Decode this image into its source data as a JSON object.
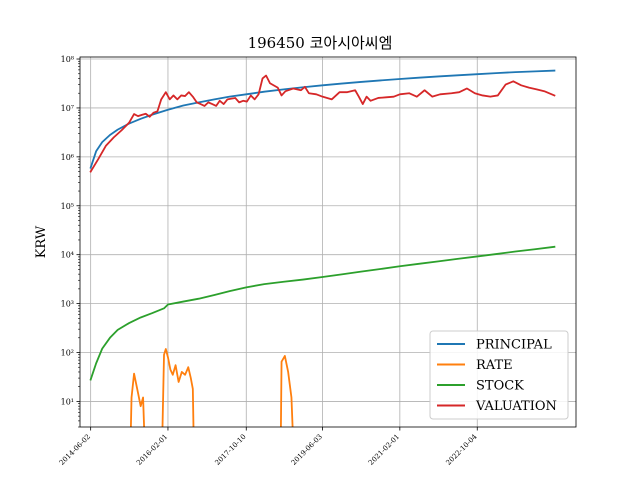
{
  "chart_data": {
    "type": "line",
    "title": "196450 코아시아씨엠",
    "xlabel": "",
    "ylabel": "KRW",
    "yscale": "log",
    "ylim": [
      3,
      110000000
    ],
    "xlim": [
      "2014-03-10",
      "2024-11-20"
    ],
    "grid": true,
    "legend_position": "lower-right",
    "x_ticks": [
      "2014-06-02",
      "2016-02-01",
      "2017-10-10",
      "2019-06-03",
      "2021-02-01",
      "2022-10-04"
    ],
    "y_ticks": [
      {
        "value": 10,
        "label": "10¹"
      },
      {
        "value": 100,
        "label": "10²"
      },
      {
        "value": 1000,
        "label": "10³"
      },
      {
        "value": 10000,
        "label": "10⁴"
      },
      {
        "value": 100000,
        "label": "10⁵"
      },
      {
        "value": 1000000,
        "label": "10⁶"
      },
      {
        "value": 10000000,
        "label": "10⁷"
      },
      {
        "value": 100000000,
        "label": "10⁸"
      }
    ],
    "series": [
      {
        "name": "PRINCIPAL",
        "color": "#1f77b4",
        "segments": [
          [
            [
              "2014-06-02",
              600000
            ],
            [
              "2014-07-15",
              1300000
            ],
            [
              "2014-09-01",
              2000000
            ],
            [
              "2014-11-01",
              2800000
            ],
            [
              "2015-01-01",
              3600000
            ],
            [
              "2015-04-01",
              4800000
            ],
            [
              "2015-07-01",
              6000000
            ],
            [
              "2015-10-01",
              7300000
            ],
            [
              "2016-02-01",
              9200000
            ],
            [
              "2016-06-01",
              11200000
            ],
            [
              "2016-10-01",
              13000000
            ],
            [
              "2017-02-01",
              15000000
            ],
            [
              "2017-06-01",
              17000000
            ],
            [
              "2017-10-10",
              19000000
            ],
            [
              "2018-03-01",
              21500000
            ],
            [
              "2018-08-01",
              24000000
            ],
            [
              "2019-01-01",
              26500000
            ],
            [
              "2019-06-03",
              29000000
            ],
            [
              "2019-11-01",
              31500000
            ],
            [
              "2020-04-01",
              34000000
            ],
            [
              "2020-09-01",
              36500000
            ],
            [
              "2021-02-01",
              39000000
            ],
            [
              "2021-07-01",
              41500000
            ],
            [
              "2021-12-01",
              44000000
            ],
            [
              "2022-05-01",
              46500000
            ],
            [
              "2022-10-04",
              49000000
            ],
            [
              "2023-03-01",
              51500000
            ],
            [
              "2023-08-01",
              54000000
            ],
            [
              "2024-01-01",
              56000000
            ],
            [
              "2024-06-03",
              58000000
            ]
          ]
        ]
      },
      {
        "name": "RATE",
        "color": "#ff7f0e",
        "segments": [
          [
            [
              "2015-04-15",
              3
            ],
            [
              "2015-04-20",
              12
            ],
            [
              "2015-05-10",
              37
            ],
            [
              "2015-06-10",
              15
            ],
            [
              "2015-07-01",
              8
            ],
            [
              "2015-07-20",
              12
            ],
            [
              "2015-07-28",
              3
            ]
          ],
          [
            [
              "2015-12-20",
              3
            ],
            [
              "2016-01-01",
              90
            ],
            [
              "2016-01-15",
              118
            ],
            [
              "2016-02-01",
              80
            ],
            [
              "2016-02-20",
              45
            ],
            [
              "2016-03-10",
              35
            ],
            [
              "2016-04-01",
              55
            ],
            [
              "2016-04-25",
              25
            ],
            [
              "2016-05-20",
              40
            ],
            [
              "2016-06-15",
              35
            ],
            [
              "2016-07-10",
              50
            ],
            [
              "2016-07-30",
              30
            ],
            [
              "2016-08-15",
              18
            ],
            [
              "2016-08-20",
              3
            ]
          ],
          [
            [
              "2018-07-10",
              3
            ],
            [
              "2018-07-15",
              65
            ],
            [
              "2018-08-10",
              85
            ],
            [
              "2018-09-05",
              40
            ],
            [
              "2018-10-01",
              12
            ],
            [
              "2018-10-10",
              3
            ]
          ]
        ]
      },
      {
        "name": "STOCK",
        "color": "#2ca02c",
        "segments": [
          [
            [
              "2014-06-02",
              28
            ],
            [
              "2014-07-15",
              60
            ],
            [
              "2014-09-01",
              120
            ],
            [
              "2014-11-01",
              200
            ],
            [
              "2015-01-01",
              290
            ],
            [
              "2015-04-01",
              400
            ],
            [
              "2015-07-01",
              520
            ],
            [
              "2015-10-01",
              640
            ],
            [
              "2016-01-01",
              800
            ],
            [
              "2016-02-01",
              960
            ],
            [
              "2016-06-01",
              1100
            ],
            [
              "2016-10-01",
              1260
            ],
            [
              "2017-02-01",
              1500
            ],
            [
              "2017-06-01",
              1800
            ],
            [
              "2017-10-10",
              2150
            ],
            [
              "2018-03-01",
              2500
            ],
            [
              "2018-08-01",
              2800
            ],
            [
              "2019-01-01",
              3100
            ],
            [
              "2019-06-03",
              3500
            ],
            [
              "2019-11-01",
              3950
            ],
            [
              "2020-04-01",
              4500
            ],
            [
              "2020-09-01",
              5100
            ],
            [
              "2021-02-01",
              5800
            ],
            [
              "2021-07-01",
              6500
            ],
            [
              "2021-12-01",
              7300
            ],
            [
              "2022-05-01",
              8200
            ],
            [
              "2022-10-04",
              9200
            ],
            [
              "2023-03-01",
              10300
            ],
            [
              "2023-08-01",
              11600
            ],
            [
              "2024-01-01",
              12900
            ],
            [
              "2024-06-03",
              14500
            ]
          ]
        ]
      },
      {
        "name": "VALUATION",
        "color": "#d62728",
        "segments": [
          [
            [
              "2014-06-02",
              500000
            ],
            [
              "2014-08-01",
              900000
            ],
            [
              "2014-10-01",
              1700000
            ],
            [
              "2014-12-01",
              2500000
            ],
            [
              "2015-02-01",
              3500000
            ],
            [
              "2015-04-01",
              5000000
            ],
            [
              "2015-05-10",
              7500000
            ],
            [
              "2015-06-10",
              6800000
            ],
            [
              "2015-07-10",
              7200000
            ],
            [
              "2015-08-10",
              7600000
            ],
            [
              "2015-09-10",
              6600000
            ],
            [
              "2015-10-10",
              8000000
            ],
            [
              "2015-11-10",
              8500000
            ],
            [
              "2015-12-10",
              15000000
            ],
            [
              "2016-01-15",
              21000000
            ],
            [
              "2016-02-15",
              15000000
            ],
            [
              "2016-03-15",
              18000000
            ],
            [
              "2016-04-15",
              15000000
            ],
            [
              "2016-05-15",
              18000000
            ],
            [
              "2016-06-15",
              17500000
            ],
            [
              "2016-07-15",
              21000000
            ],
            [
              "2016-08-15",
              17000000
            ],
            [
              "2016-09-15",
              13000000
            ],
            [
              "2016-10-15",
              12000000
            ],
            [
              "2016-11-15",
              11000000
            ],
            [
              "2016-12-15",
              13000000
            ],
            [
              "2017-01-15",
              12000000
            ],
            [
              "2017-02-15",
              11000000
            ],
            [
              "2017-03-15",
              14000000
            ],
            [
              "2017-04-15",
              12000000
            ],
            [
              "2017-05-15",
              15000000
            ],
            [
              "2017-06-15",
              15500000
            ],
            [
              "2017-07-15",
              16000000
            ],
            [
              "2017-08-15",
              13000000
            ],
            [
              "2017-09-15",
              14000000
            ],
            [
              "2017-10-15",
              13500000
            ],
            [
              "2017-11-15",
              18000000
            ],
            [
              "2017-12-15",
              15000000
            ],
            [
              "2018-01-15",
              19000000
            ],
            [
              "2018-02-15",
              40000000
            ],
            [
              "2018-03-15",
              46000000
            ],
            [
              "2018-04-15",
              32000000
            ],
            [
              "2018-06-15",
              26000000
            ],
            [
              "2018-07-15",
              18000000
            ],
            [
              "2018-08-15",
              22000000
            ],
            [
              "2018-10-15",
              25000000
            ],
            [
              "2018-12-15",
              23000000
            ],
            [
              "2019-01-15",
              27000000
            ],
            [
              "2019-02-15",
              20000000
            ],
            [
              "2019-04-15",
              19000000
            ],
            [
              "2019-06-03",
              17000000
            ],
            [
              "2019-08-15",
              15000000
            ],
            [
              "2019-10-15",
              21000000
            ],
            [
              "2019-12-15",
              21000000
            ],
            [
              "2020-02-15",
              23000000
            ],
            [
              "2020-03-15",
              17000000
            ],
            [
              "2020-04-15",
              12000000
            ],
            [
              "2020-05-15",
              17000000
            ],
            [
              "2020-06-15",
              14000000
            ],
            [
              "2020-08-15",
              16000000
            ],
            [
              "2020-10-15",
              16500000
            ],
            [
              "2020-12-15",
              17000000
            ],
            [
              "2021-02-01",
              19000000
            ],
            [
              "2021-04-15",
              20000000
            ],
            [
              "2021-06-15",
              17000000
            ],
            [
              "2021-08-15",
              23000000
            ],
            [
              "2021-10-15",
              17000000
            ],
            [
              "2021-12-15",
              19000000
            ],
            [
              "2022-03-15",
              20000000
            ],
            [
              "2022-05-15",
              21000000
            ],
            [
              "2022-07-15",
              25000000
            ],
            [
              "2022-09-15",
              20000000
            ],
            [
              "2022-11-15",
              18000000
            ],
            [
              "2023-01-15",
              17000000
            ],
            [
              "2023-03-15",
              18000000
            ],
            [
              "2023-05-15",
              30000000
            ],
            [
              "2023-07-15",
              35000000
            ],
            [
              "2023-09-15",
              29000000
            ],
            [
              "2023-11-15",
              26000000
            ],
            [
              "2024-01-15",
              24000000
            ],
            [
              "2024-03-15",
              22000000
            ],
            [
              "2024-06-03",
              18000000
            ]
          ]
        ]
      }
    ]
  }
}
